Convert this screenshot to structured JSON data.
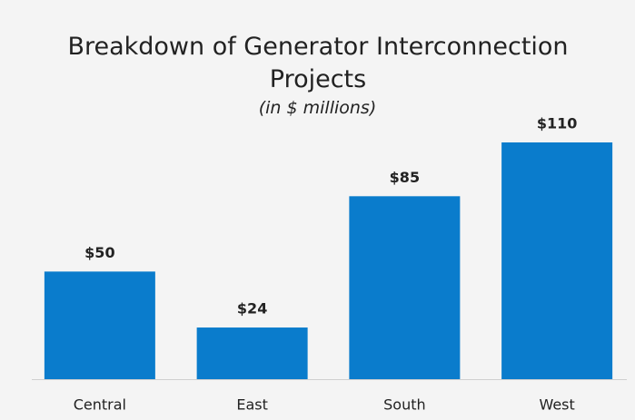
{
  "chart_data": {
    "type": "bar",
    "title": "Breakdown of Generator Interconnection Projects",
    "subtitle": "(in $ millions)",
    "categories": [
      "Central",
      "East",
      "South",
      "West"
    ],
    "values": [
      50,
      24,
      85,
      110
    ],
    "value_labels": [
      "$50",
      "$24",
      "$85",
      "$110"
    ],
    "color": "#0a7ccc"
  }
}
